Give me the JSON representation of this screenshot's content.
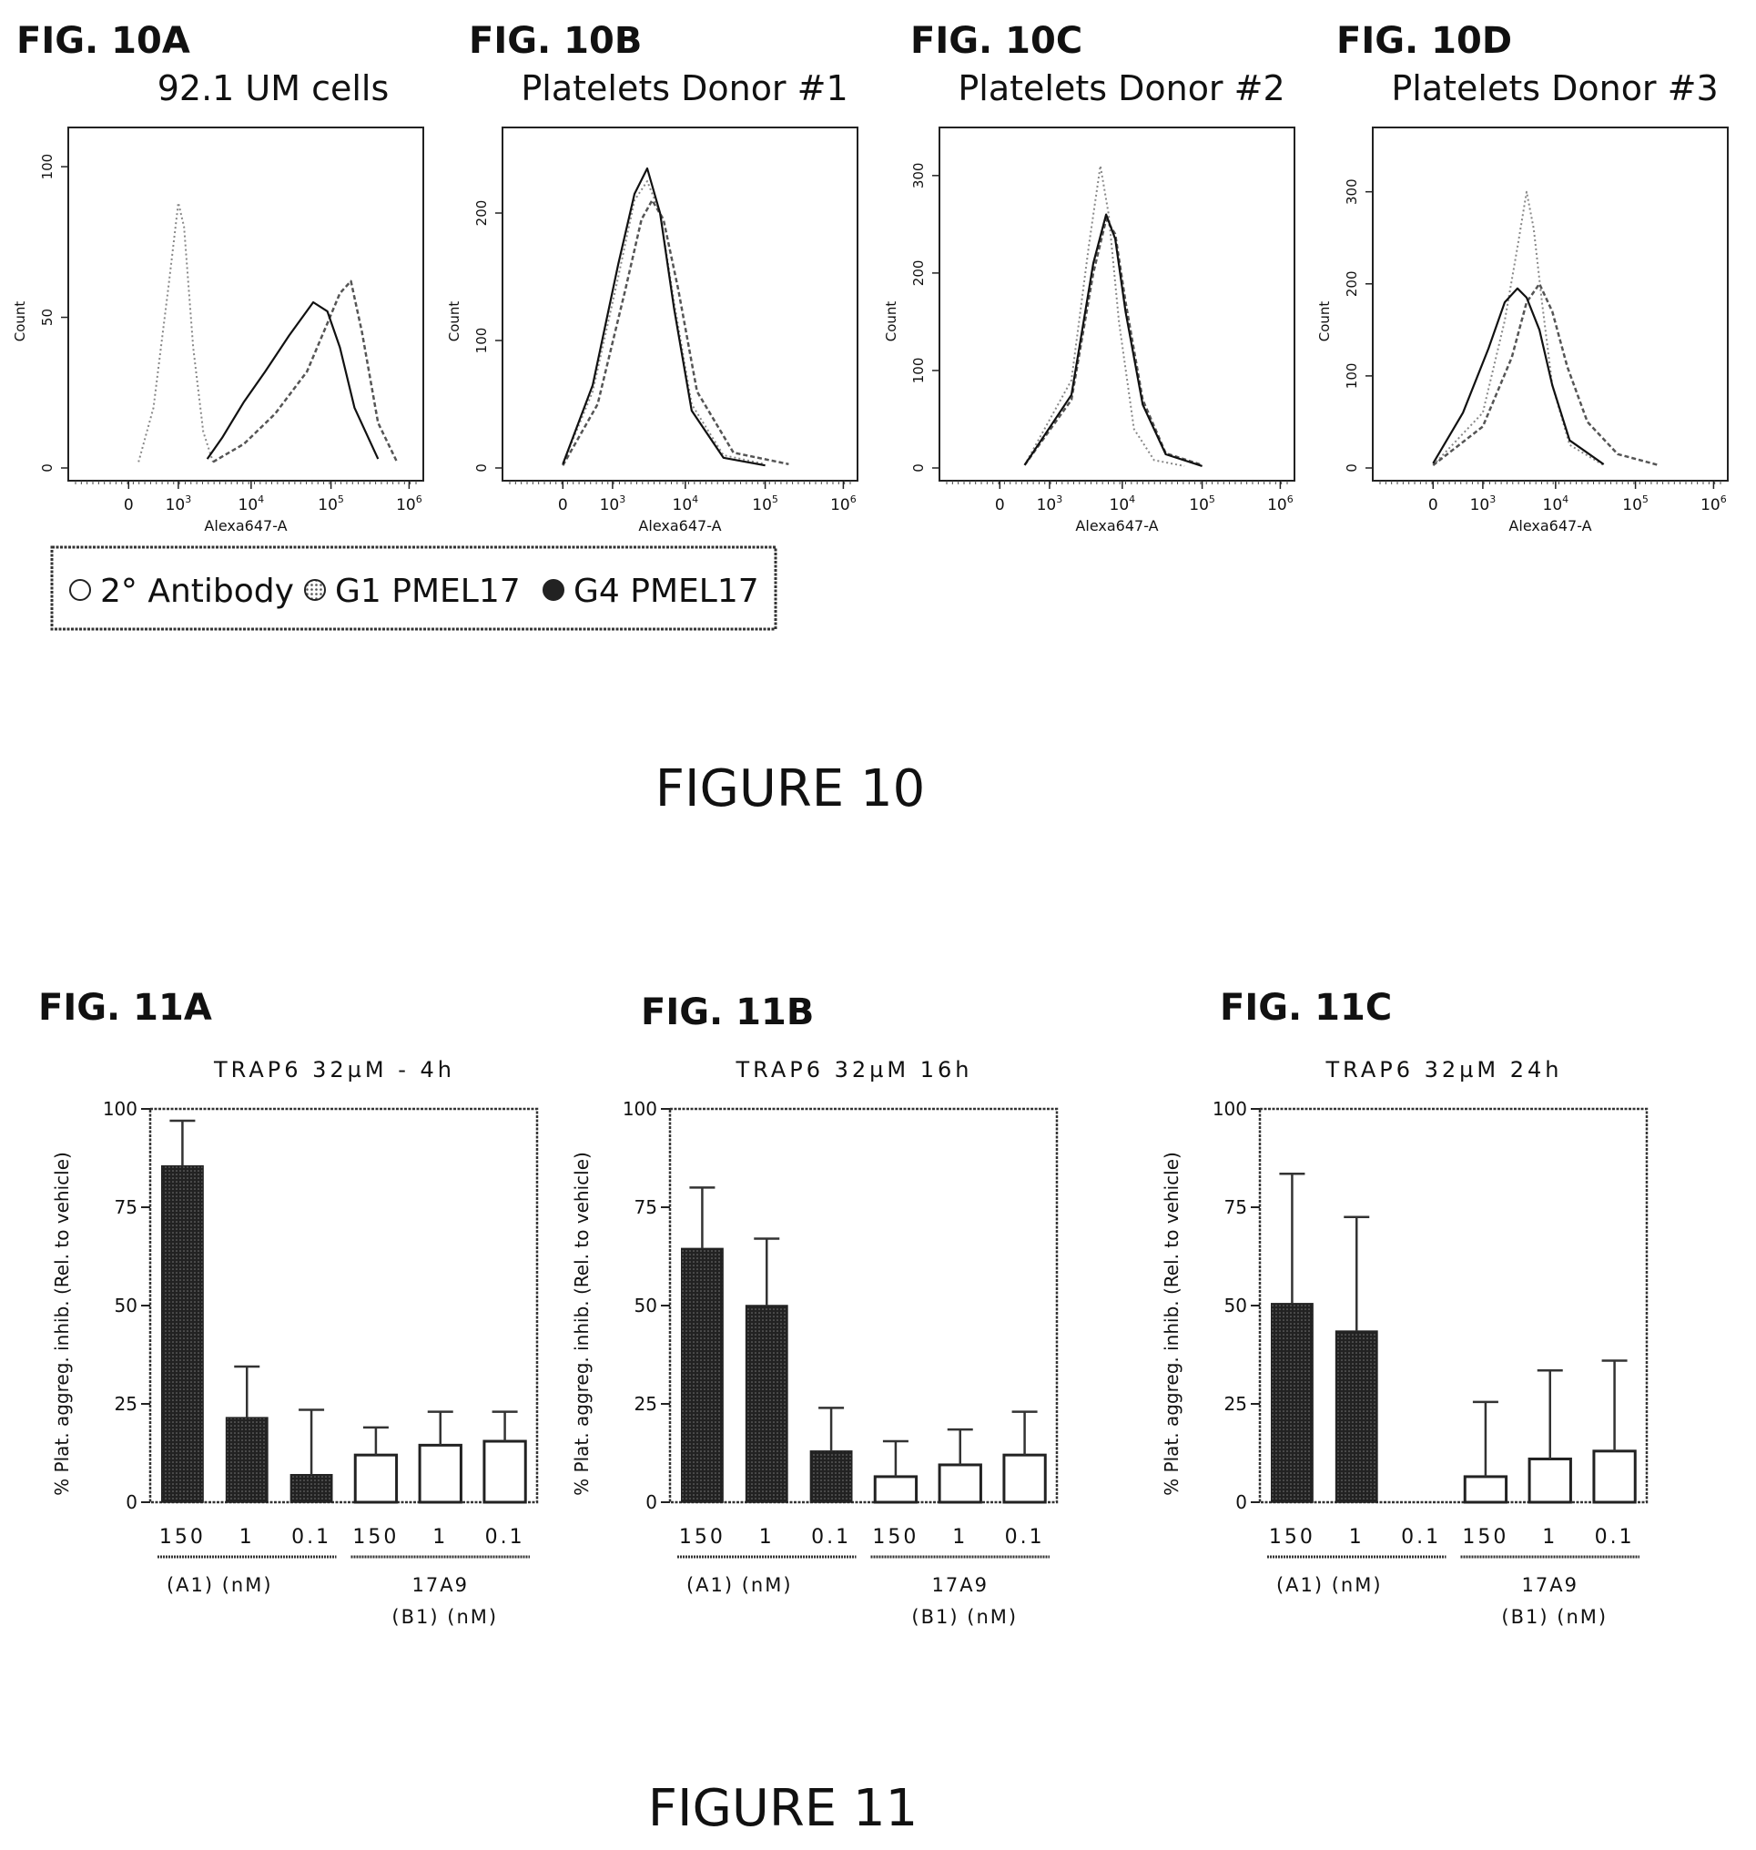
{
  "figure10": {
    "caption": "FIGURE 10",
    "legend": {
      "items": [
        {
          "label": "2° Antibody",
          "marker": "open"
        },
        {
          "label": "G1 PMEL17",
          "marker": "dotted"
        },
        {
          "label": "G4 PMEL17",
          "marker": "filled"
        }
      ]
    }
  },
  "figure11": {
    "caption": "FIGURE 11"
  },
  "chart_data": [
    {
      "panel": "FIG. 10A",
      "type": "area",
      "title": "92.1 UM cells",
      "xlabel": "Alexa647-A",
      "ylabel": "Count",
      "xscale": "biexponential",
      "xticks": [
        "0",
        "10^3",
        "10^4",
        "10^5",
        "10^6"
      ],
      "yticks": [
        0,
        50,
        100
      ],
      "ylim": [
        0,
        110
      ],
      "series": [
        {
          "name": "2° Antibody",
          "style": "dotted-light",
          "x": [
            200,
            500,
            800,
            1000,
            1200,
            1600,
            2200,
            3000
          ],
          "y": [
            2,
            20,
            60,
            88,
            80,
            40,
            12,
            2
          ]
        },
        {
          "name": "G1 PMEL17",
          "style": "hatched",
          "x": [
            3000,
            8000,
            20000,
            50000,
            90000,
            130000,
            180000,
            250000,
            400000,
            700000
          ],
          "y": [
            2,
            8,
            18,
            32,
            48,
            58,
            62,
            45,
            15,
            2
          ]
        },
        {
          "name": "G4 PMEL17",
          "style": "solid",
          "x": [
            2500,
            4000,
            8000,
            15000,
            30000,
            60000,
            90000,
            130000,
            200000,
            400000
          ],
          "y": [
            3,
            10,
            22,
            32,
            44,
            55,
            52,
            40,
            20,
            3
          ]
        }
      ]
    },
    {
      "panel": "FIG. 10B",
      "type": "area",
      "title": "Platelets Donor #1",
      "xlabel": "Alexa647-A",
      "ylabel": "Count",
      "xscale": "biexponential",
      "xticks": [
        "0",
        "10^3",
        "10^4",
        "10^5",
        "10^6"
      ],
      "yticks": [
        0,
        100,
        200
      ],
      "ylim": [
        0,
        260
      ],
      "series": [
        {
          "name": "2° Antibody",
          "style": "dotted-light",
          "x": [
            0,
            600,
            1200,
            2000,
            3000,
            4500,
            7000,
            12000,
            30000,
            100000
          ],
          "y": [
            3,
            60,
            150,
            210,
            225,
            200,
            130,
            50,
            10,
            3
          ]
        },
        {
          "name": "G1 PMEL17",
          "style": "hatched",
          "x": [
            0,
            700,
            1500,
            2500,
            3500,
            5000,
            8000,
            14000,
            40000,
            200000
          ],
          "y": [
            2,
            50,
            140,
            195,
            210,
            195,
            140,
            60,
            12,
            3
          ]
        },
        {
          "name": "G4 PMEL17",
          "style": "solid",
          "x": [
            0,
            600,
            1200,
            2000,
            3000,
            4500,
            7000,
            12000,
            30000,
            100000
          ],
          "y": [
            3,
            65,
            160,
            215,
            235,
            200,
            125,
            45,
            8,
            2
          ]
        }
      ]
    },
    {
      "panel": "FIG. 10C",
      "type": "area",
      "title": "Platelets Donor #2",
      "xlabel": "Alexa647-A",
      "ylabel": "Count",
      "xscale": "biexponential",
      "xticks": [
        "0",
        "10^3",
        "10^4",
        "10^5",
        "10^6"
      ],
      "yticks": [
        0,
        100,
        200,
        300
      ],
      "ylim": [
        0,
        340
      ],
      "series": [
        {
          "name": "2° Antibody",
          "style": "dotted-light",
          "x": [
            500,
            2000,
            3500,
            5000,
            6500,
            9000,
            14000,
            25000,
            60000
          ],
          "y": [
            3,
            90,
            230,
            310,
            260,
            150,
            40,
            8,
            2
          ]
        },
        {
          "name": "G1 PMEL17",
          "style": "hatched",
          "x": [
            500,
            2000,
            4000,
            6000,
            8000,
            11000,
            18000,
            35000,
            100000
          ],
          "y": [
            3,
            70,
            200,
            255,
            240,
            170,
            70,
            15,
            3
          ]
        },
        {
          "name": "G4 PMEL17",
          "style": "solid",
          "x": [
            500,
            2000,
            4000,
            6000,
            8000,
            11000,
            18000,
            35000,
            100000
          ],
          "y": [
            3,
            75,
            210,
            260,
            235,
            160,
            65,
            14,
            2
          ]
        }
      ]
    },
    {
      "panel": "FIG. 10D",
      "type": "area",
      "title": "Platelets Donor #3",
      "xlabel": "Alexa647-A",
      "ylabel": "Count",
      "xscale": "biexponential",
      "xticks": [
        "0",
        "10^3",
        "10^4",
        "10^5",
        "10^6"
      ],
      "yticks": [
        0,
        100,
        200,
        300
      ],
      "ylim": [
        0,
        360
      ],
      "series": [
        {
          "name": "2° Antibody",
          "style": "dotted-light",
          "x": [
            0,
            1000,
            2000,
            3000,
            4000,
            5000,
            6500,
            9000,
            15000,
            40000
          ],
          "y": [
            3,
            60,
            160,
            240,
            300,
            260,
            180,
            90,
            25,
            3
          ]
        },
        {
          "name": "G1 PMEL17",
          "style": "hatched",
          "x": [
            0,
            1000,
            2500,
            4000,
            6000,
            9000,
            14000,
            25000,
            60000,
            200000
          ],
          "y": [
            3,
            45,
            120,
            180,
            200,
            170,
            110,
            50,
            15,
            3
          ]
        },
        {
          "name": "G4 PMEL17",
          "style": "solid",
          "x": [
            0,
            600,
            1200,
            2000,
            3000,
            4000,
            6000,
            9000,
            15000,
            40000
          ],
          "y": [
            5,
            60,
            130,
            180,
            195,
            185,
            150,
            90,
            30,
            4
          ]
        }
      ]
    },
    {
      "panel": "FIG. 11A",
      "type": "bar",
      "title": "TRAP6 32µM - 4h",
      "ylabel": "% Plat. aggreg. inhib. (Rel. to vehicle)",
      "ylim": [
        0,
        100
      ],
      "yticks": [
        0,
        25,
        50,
        75,
        100
      ],
      "categories": [
        "150",
        "1",
        "0.1",
        "150",
        "1",
        "0.1"
      ],
      "groups": [
        {
          "label": "(A1) (nM)",
          "sublabel": ""
        },
        {
          "label": "17A9",
          "sublabel": "(B1) (nM)"
        }
      ],
      "values": [
        85.5,
        21.5,
        7,
        12,
        14.5,
        15.5
      ],
      "errors": [
        11.5,
        13,
        16.5,
        7,
        8.5,
        7.5
      ],
      "fills": [
        "filled",
        "filled",
        "filled",
        "open",
        "open",
        "open"
      ]
    },
    {
      "panel": "FIG. 11B",
      "type": "bar",
      "title": "TRAP6 32µM 16h",
      "ylabel": "% Plat. aggreg. inhib. (Rel. to vehicle)",
      "ylim": [
        0,
        100
      ],
      "yticks": [
        0,
        25,
        50,
        75,
        100
      ],
      "categories": [
        "150",
        "1",
        "0.1",
        "150",
        "1",
        "0.1"
      ],
      "groups": [
        {
          "label": "(A1) (nM)",
          "sublabel": ""
        },
        {
          "label": "17A9",
          "sublabel": "(B1) (nM)"
        }
      ],
      "values": [
        64.5,
        50,
        13,
        6.5,
        9.5,
        12
      ],
      "errors": [
        15.5,
        17,
        11,
        9,
        9,
        11
      ],
      "fills": [
        "filled",
        "filled",
        "filled",
        "open",
        "open",
        "open"
      ]
    },
    {
      "panel": "FIG. 11C",
      "type": "bar",
      "title": "TRAP6 32µM 24h",
      "ylabel": "% Plat. aggreg. inhib. (Rel. to vehicle)",
      "ylim": [
        0,
        100
      ],
      "yticks": [
        0,
        25,
        50,
        75,
        100
      ],
      "categories": [
        "150",
        "1",
        "0.1",
        "150",
        "1",
        "0.1"
      ],
      "groups": [
        {
          "label": "(A1) (nM)",
          "sublabel": ""
        },
        {
          "label": "17A9",
          "sublabel": "(B1) (nM)"
        }
      ],
      "values": [
        50.5,
        43.5,
        0,
        6.5,
        11,
        13
      ],
      "errors": [
        33,
        29,
        0,
        19,
        22.5,
        23
      ],
      "fills": [
        "filled",
        "filled",
        "filled",
        "open",
        "open",
        "open"
      ]
    }
  ]
}
